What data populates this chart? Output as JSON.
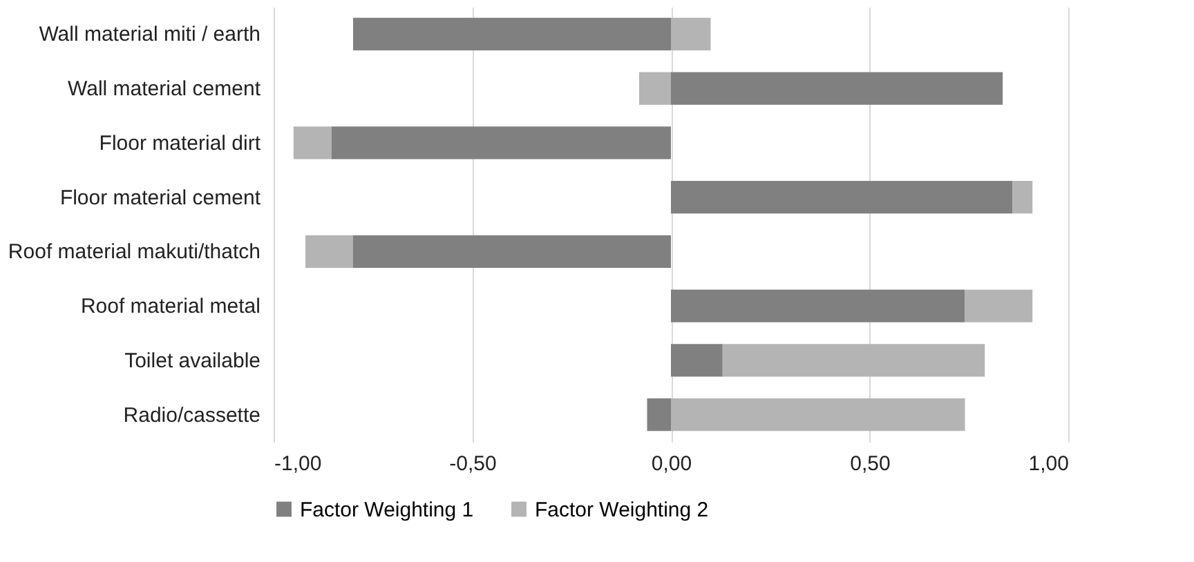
{
  "chart_data": {
    "type": "bar",
    "orientation": "horizontal",
    "stacked": true,
    "categories": [
      "Wall material miti / earth",
      "Wall material cement",
      "Floor material dirt",
      "Floor material cement",
      "Roof material makuti/thatch",
      "Roof material metal",
      "Toilet available",
      "Radio/cassette"
    ],
    "series": [
      {
        "name": "Factor Weighting 1",
        "color": "#808080",
        "values": [
          -0.8,
          0.835,
          -0.855,
          0.86,
          -0.8,
          0.74,
          0.13,
          -0.06
        ]
      },
      {
        "name": "Factor Weighting 2",
        "color": "#b4b4b4",
        "values": [
          0.1,
          -0.08,
          -0.095,
          0.05,
          -0.12,
          0.17,
          0.66,
          0.74
        ]
      }
    ],
    "xlim": [
      -1,
      1
    ],
    "xticks": [
      {
        "value": -1,
        "label": "-1,00"
      },
      {
        "value": -0.5,
        "label": "-0,50"
      },
      {
        "value": 0,
        "label": "0,00"
      },
      {
        "value": 0.5,
        "label": "0,50"
      },
      {
        "value": 1,
        "label": "1,00"
      }
    ],
    "grid": "x",
    "legend": "bottom"
  }
}
